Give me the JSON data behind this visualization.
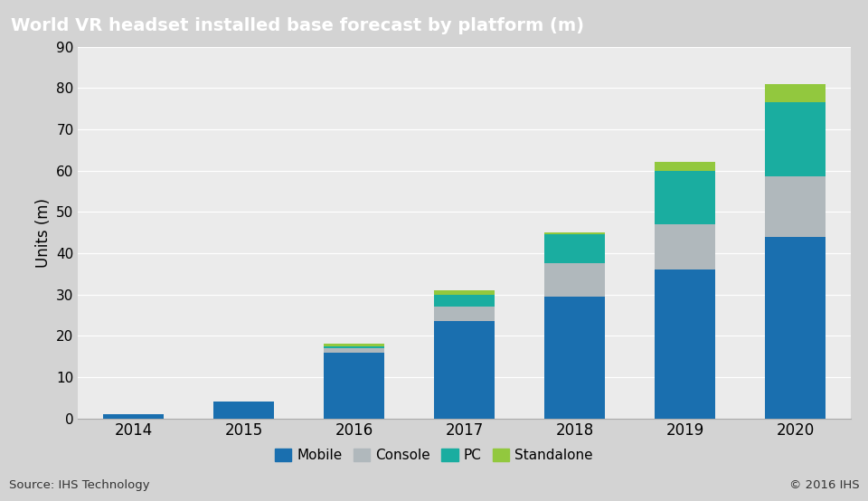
{
  "title": "World VR headset installed base forecast by platform (m)",
  "ylabel": "Units (m)",
  "source": "Source: IHS Technology",
  "copyright": "© 2016 IHS",
  "years": [
    "2014",
    "2015",
    "2016",
    "2017",
    "2018",
    "2019",
    "2020"
  ],
  "mobile": [
    1.0,
    4.0,
    16.0,
    23.5,
    29.5,
    36.0,
    44.0
  ],
  "console": [
    0.0,
    0.0,
    1.0,
    3.5,
    8.0,
    11.0,
    14.5
  ],
  "pc": [
    0.0,
    0.0,
    0.5,
    3.0,
    7.0,
    13.0,
    18.0
  ],
  "standalone": [
    0.0,
    0.0,
    0.5,
    1.0,
    0.5,
    2.0,
    4.5
  ],
  "colors": {
    "mobile": "#1a6faf",
    "console": "#b0b8bc",
    "pc": "#1aada0",
    "standalone": "#92c83e"
  },
  "legend_labels": [
    "Mobile",
    "Console",
    "PC",
    "Standalone"
  ],
  "ylim": [
    0,
    90
  ],
  "yticks": [
    0,
    10,
    20,
    30,
    40,
    50,
    60,
    70,
    80,
    90
  ],
  "title_bg_color": "#767676",
  "title_text_color": "#ffffff",
  "plot_bg_color": "#ebebeb",
  "grid_color": "#ffffff",
  "bar_width": 0.55,
  "fig_bg_color": "#d3d3d3"
}
